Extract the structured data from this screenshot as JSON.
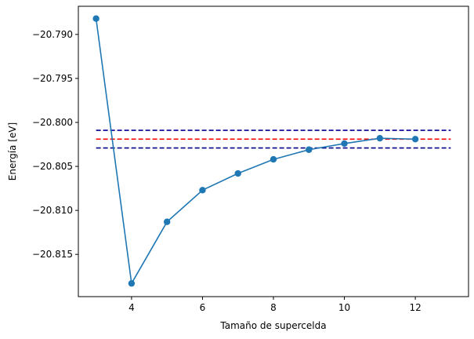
{
  "chart_data": {
    "type": "line",
    "title": "",
    "xlabel": "Tamaño de supercelda",
    "ylabel": "Energía [eV]",
    "xlim": [
      2.5,
      13.5
    ],
    "ylim": [
      -20.8198,
      -20.7868
    ],
    "xticks": [
      4,
      6,
      8,
      10,
      12
    ],
    "xtick_labels": [
      "4",
      "6",
      "8",
      "10",
      "12"
    ],
    "yticks": [
      -20.815,
      -20.81,
      -20.805,
      -20.8,
      -20.795,
      -20.79
    ],
    "ytick_labels": [
      "−20.815",
      "−20.810",
      "−20.805",
      "−20.800",
      "−20.795",
      "−20.790"
    ],
    "grid": false,
    "series": [
      {
        "x": [
          3,
          4,
          5,
          6,
          7,
          8,
          9,
          10,
          11,
          12
        ],
        "values": [
          -20.7882,
          -20.8183,
          -20.8113,
          -20.8077,
          -20.8058,
          -20.8042,
          -20.8031,
          -20.8024,
          -20.8018,
          -20.8019
        ],
        "color": "#1f77b4",
        "marker": "circle"
      }
    ],
    "hlines": [
      {
        "y": -20.8009,
        "xmin": 3,
        "xmax": 13,
        "color": "#00008b",
        "style": "dashed"
      },
      {
        "y": -20.8019,
        "xmin": 3,
        "xmax": 13,
        "color": "#ff0000",
        "style": "dashed"
      },
      {
        "y": -20.8029,
        "xmin": 3,
        "xmax": 13,
        "color": "#00008b",
        "style": "dashed"
      }
    ]
  }
}
